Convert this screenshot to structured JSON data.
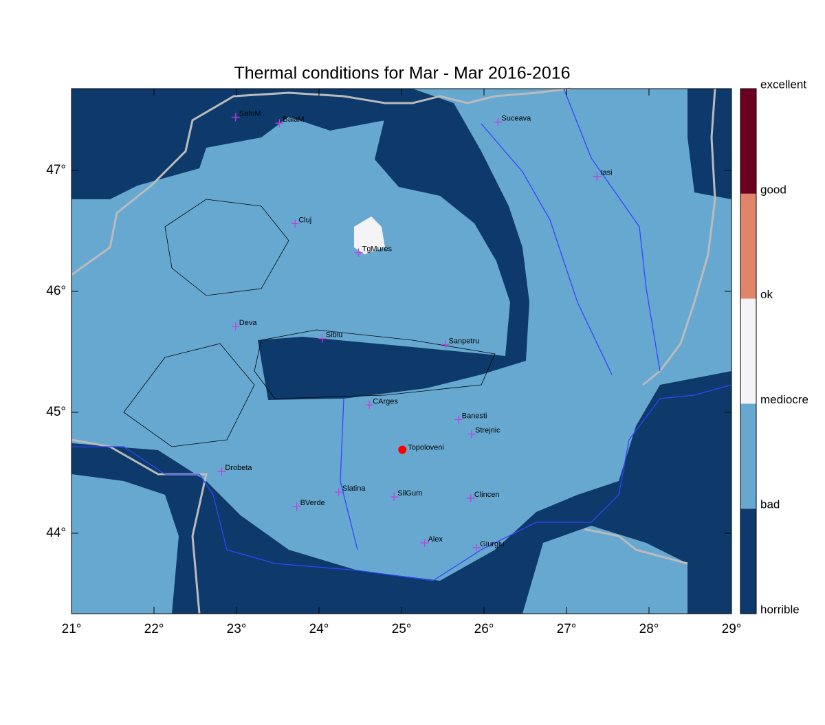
{
  "map": {
    "title": "Thermal conditions for Mar - Mar  2016-2016",
    "xlim": [
      21,
      29
    ],
    "ylim": [
      43.335,
      47.676
    ],
    "xticks": [
      {
        "value": 21,
        "label": "21°"
      },
      {
        "value": 22,
        "label": "22°"
      },
      {
        "value": 23,
        "label": "23°"
      },
      {
        "value": 24,
        "label": "24°"
      },
      {
        "value": 25,
        "label": "25°"
      },
      {
        "value": 26,
        "label": "26°"
      },
      {
        "value": 27,
        "label": "27°"
      },
      {
        "value": 28,
        "label": "28°"
      },
      {
        "value": 29,
        "label": "29°"
      }
    ],
    "yticks": [
      {
        "value": 44,
        "label": "44°"
      },
      {
        "value": 45,
        "label": "45°"
      },
      {
        "value": 46,
        "label": "46°"
      },
      {
        "value": 47,
        "label": "47°"
      }
    ],
    "cities": [
      {
        "name": "SatuM",
        "lon": 22.99,
        "lat": 47.44
      },
      {
        "name": "BaiaM",
        "lon": 23.52,
        "lat": 47.39
      },
      {
        "name": "Suceava",
        "lon": 26.17,
        "lat": 47.4
      },
      {
        "name": "Iasi",
        "lon": 27.37,
        "lat": 46.95
      },
      {
        "name": "Cluj",
        "lon": 23.71,
        "lat": 46.56
      },
      {
        "name": "TgMures",
        "lon": 24.48,
        "lat": 46.32
      },
      {
        "name": "Deva",
        "lon": 22.99,
        "lat": 45.71
      },
      {
        "name": "Sibiu",
        "lon": 24.04,
        "lat": 45.61
      },
      {
        "name": "Sanpetru",
        "lon": 25.53,
        "lat": 45.56
      },
      {
        "name": "CArges",
        "lon": 24.61,
        "lat": 45.06
      },
      {
        "name": "Banesti",
        "lon": 25.69,
        "lat": 44.94
      },
      {
        "name": "Strejnic",
        "lon": 25.85,
        "lat": 44.82
      },
      {
        "name": "Drobeta",
        "lon": 22.82,
        "lat": 44.51
      },
      {
        "name": "Slatina",
        "lon": 24.24,
        "lat": 44.34
      },
      {
        "name": "SilGum",
        "lon": 24.91,
        "lat": 44.3
      },
      {
        "name": "Clincen",
        "lon": 25.84,
        "lat": 44.29
      },
      {
        "name": "BVerde",
        "lon": 23.73,
        "lat": 44.22
      },
      {
        "name": "Alex",
        "lon": 25.28,
        "lat": 43.92
      },
      {
        "name": "Giurgiu",
        "lon": 25.91,
        "lat": 43.88
      }
    ],
    "highlight": {
      "name": "Topoloveni",
      "lon": 25.01,
      "lat": 44.69,
      "color": "#ff0000"
    },
    "city_color": "#c040e0",
    "colorbar": {
      "labels": [
        "horrible",
        "bad",
        "mediocre",
        "ok",
        "good",
        "excellent"
      ],
      "colors": [
        "#0d3a6b",
        "#67a8d0",
        "#f4f4f6",
        "#e0856a",
        "#6b0020"
      ]
    }
  }
}
